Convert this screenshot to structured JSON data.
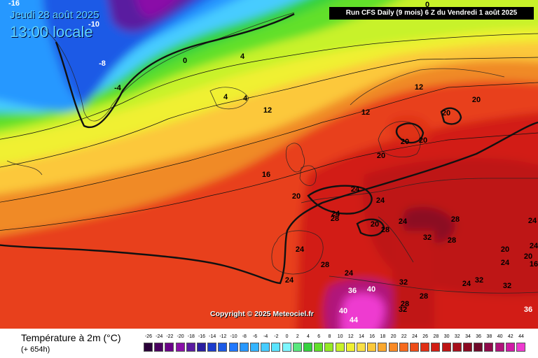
{
  "header": {
    "date": "Jeudi 28 août 2025",
    "time": "13:00 locale",
    "run_info": "Run CFS Daily (9 mois) 6 Z du Vendredi 1 août 2025"
  },
  "copyright": "Copyright © 2025 Meteociel.fr",
  "footer": {
    "title": "Température à 2m (°C)",
    "subtitle": "(+ 654h)"
  },
  "legend": {
    "labels": [
      "-26",
      "-24",
      "-22",
      "-20",
      "-18",
      "-16",
      "-14",
      "-12",
      "-10",
      "-8",
      "-6",
      "-4",
      "-2",
      "0",
      "2",
      "4",
      "6",
      "8",
      "10",
      "12",
      "14",
      "16",
      "18",
      "20",
      "22",
      "24",
      "26",
      "28",
      "30",
      "32",
      "34",
      "36",
      "38",
      "40",
      "42",
      "44"
    ],
    "colors": [
      "#2a0038",
      "#4a0060",
      "#6a0088",
      "#8a10a8",
      "#5a1aa0",
      "#2a1ea0",
      "#1c3ccc",
      "#1c5ae6",
      "#2078ff",
      "#2898ff",
      "#34b4ff",
      "#46ccff",
      "#5ae4ff",
      "#7ef6ff",
      "#5ae87e",
      "#36d23e",
      "#62e02a",
      "#96ea26",
      "#c8f22a",
      "#f0f032",
      "#fae046",
      "#fcc83a",
      "#fca82e",
      "#fa8a26",
      "#f66a1e",
      "#ee4c18",
      "#e03016",
      "#d21e14",
      "#be1414",
      "#a8101c",
      "#8c0a22",
      "#700a2a",
      "#900a4a",
      "#b0127a",
      "#d01aa6",
      "#ee3ad0"
    ]
  },
  "map_labels": [
    {
      "text": "-16"
    },
    {
      "text": "-10"
    },
    {
      "text": "-8"
    },
    {
      "text": "-4"
    },
    {
      "text": "0"
    },
    {
      "text": "0"
    },
    {
      "text": "4"
    },
    {
      "text": "4"
    },
    {
      "text": "4"
    },
    {
      "text": "12"
    },
    {
      "text": "12"
    },
    {
      "text": "12"
    },
    {
      "text": "16"
    },
    {
      "text": "20"
    },
    {
      "text": "20"
    },
    {
      "text": "20"
    },
    {
      "text": "20"
    },
    {
      "text": "20"
    },
    {
      "text": "20"
    },
    {
      "text": "24"
    },
    {
      "text": "24"
    },
    {
      "text": "24"
    },
    {
      "text": "28"
    },
    {
      "text": "24"
    },
    {
      "text": "20"
    },
    {
      "text": "28"
    },
    {
      "text": "28"
    },
    {
      "text": "32"
    },
    {
      "text": "28"
    },
    {
      "text": "28"
    },
    {
      "text": "24"
    },
    {
      "text": "24"
    },
    {
      "text": "24"
    },
    {
      "text": "20"
    },
    {
      "text": "20"
    },
    {
      "text": "24"
    },
    {
      "text": "16"
    },
    {
      "text": "24"
    },
    {
      "text": "24"
    },
    {
      "text": "32"
    },
    {
      "text": "28"
    },
    {
      "text": "24"
    },
    {
      "text": "32"
    },
    {
      "text": "32"
    },
    {
      "text": "36"
    },
    {
      "text": "40"
    },
    {
      "text": "28"
    },
    {
      "text": "32"
    },
    {
      "text": "40"
    },
    {
      "text": "44"
    },
    {
      "text": "36"
    }
  ]
}
